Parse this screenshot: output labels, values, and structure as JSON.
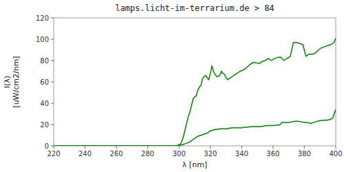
{
  "chart_data": {
    "type": "line",
    "title": "lamps.licht-im-terrarium.de > 84",
    "x_label": "λ [nm]",
    "y_label": "I(λ)\n[uW/cm2/nm]",
    "xlim": [
      220,
      400
    ],
    "ylim": [
      0,
      120
    ],
    "xticks": [
      220,
      240,
      260,
      280,
      300,
      320,
      340,
      360,
      380,
      400
    ],
    "yticks": [
      0,
      20,
      40,
      60,
      80,
      100,
      120
    ],
    "grid": false,
    "series": [
      {
        "color": "#008000",
        "x": [
          220,
          240,
          260,
          280,
          290,
          293,
          295,
          297,
          299,
          300,
          301,
          302,
          303,
          304,
          305,
          306,
          307,
          308,
          309,
          310,
          311,
          312,
          313,
          314,
          315,
          316,
          317,
          318,
          319,
          320,
          321,
          322,
          323,
          324,
          325,
          326,
          327,
          328,
          329,
          330,
          331,
          332,
          333,
          334,
          335,
          337,
          339,
          341,
          343,
          345,
          347,
          349,
          351,
          353,
          355,
          357,
          359,
          361,
          363,
          365,
          367,
          369,
          371,
          373,
          375,
          377,
          379,
          381,
          383,
          385,
          387,
          389,
          391,
          393,
          395,
          397,
          399,
          400
        ],
        "values": [
          0,
          0,
          0,
          0,
          0,
          0,
          0,
          0,
          0.3,
          1,
          2,
          5,
          10,
          16,
          22,
          28,
          32,
          38,
          44,
          46,
          47,
          52,
          55,
          57,
          63,
          65,
          66,
          64,
          62,
          68,
          75,
          70,
          67,
          65,
          65,
          66,
          70,
          68,
          67,
          64,
          62,
          63,
          64,
          65,
          66,
          68,
          70,
          71,
          73,
          76,
          78,
          78,
          77,
          79,
          80,
          82,
          80,
          82,
          83,
          83,
          80,
          82,
          84,
          97,
          97,
          96,
          95,
          84,
          86,
          86,
          87,
          90,
          92,
          93,
          94,
          95,
          97,
          101
        ]
      },
      {
        "color": "#008000",
        "x": [
          220,
          280,
          290,
          295,
          298,
          300,
          302,
          304,
          306,
          308,
          310,
          312,
          314,
          316,
          318,
          320,
          322,
          324,
          326,
          328,
          330,
          332,
          334,
          336,
          338,
          340,
          342,
          344,
          346,
          348,
          350,
          352,
          354,
          356,
          358,
          360,
          362,
          364,
          366,
          368,
          370,
          372,
          374,
          376,
          378,
          380,
          382,
          384,
          386,
          388,
          390,
          392,
          394,
          396,
          398,
          400
        ],
        "values": [
          0,
          0,
          0,
          0,
          0,
          0.5,
          1,
          2,
          3,
          5,
          7,
          9,
          10,
          11,
          12,
          14,
          15,
          15.5,
          16,
          16,
          16,
          16.5,
          17,
          17,
          17,
          17,
          17.5,
          17.5,
          18,
          18,
          18,
          18,
          18.5,
          19,
          19,
          19,
          19.5,
          19.5,
          22,
          22,
          22,
          22.5,
          23,
          23,
          22.5,
          22,
          22,
          21,
          22,
          23,
          23.5,
          24,
          24,
          24.5,
          26,
          34
        ]
      }
    ]
  }
}
